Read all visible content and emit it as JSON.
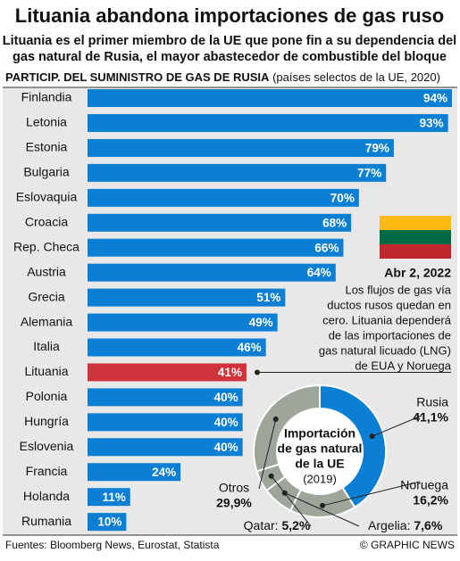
{
  "title": "Lituania abandona importaciones de gas ruso",
  "subtitle": [
    "Lituania es el primer miembro de la UE que pone fin a su dependencia del",
    "gas natural de Rusia, el mayor abastecedor de combustible del bloque"
  ],
  "chart_data": [
    {
      "type": "hbar",
      "title": "PARTICIP. DEL SUMINISTRO DE GAS DE RUSIA",
      "subtitle": "(países selectos de la UE, 2020)",
      "categories": [
        "Finlandia",
        "Letonia",
        "Estonia",
        "Bulgaria",
        "Eslovaquia",
        "Croacia",
        "Rep. Checa",
        "Austria",
        "Grecia",
        "Alemania",
        "Italia",
        "Lituania",
        "Polonia",
        "Hungría",
        "Eslovenia",
        "Francia",
        "Holanda",
        "Rumania"
      ],
      "values": [
        94,
        93,
        79,
        77,
        70,
        68,
        66,
        64,
        51,
        49,
        46,
        41,
        40,
        40,
        40,
        24,
        11,
        10
      ],
      "value_labels": [
        "94%",
        "93%",
        "79%",
        "77%",
        "70%",
        "68%",
        "66%",
        "64%",
        "51%",
        "49%",
        "46%",
        "41%",
        "40%",
        "40%",
        "40%",
        "24%",
        "11%",
        "10%"
      ],
      "color": "#0a7fd4",
      "highlight": {
        "category": "Lituania",
        "color": "#d0313a"
      }
    },
    {
      "type": "donut",
      "title": [
        "Importación",
        "de gas natural",
        "de la UE"
      ],
      "subtitle": "(2019)",
      "categories": [
        "Rusia",
        "Noruega",
        "Argelia:",
        "Qatar:",
        "Otros"
      ],
      "values": [
        41.1,
        16.2,
        7.6,
        5.2,
        29.9
      ],
      "value_labels": [
        "41,1%",
        "16,2%",
        "7,6%",
        "5,2%",
        "29,9%"
      ],
      "colors": [
        "#0a7fd4",
        "#9ea59a",
        "#9ea59a",
        "#9ea59a",
        "#9ea59a"
      ]
    }
  ],
  "annotation": {
    "date": "Abr 2, 2022",
    "lines": [
      "Los flujos de gas vía",
      "ductos rusos quedan en",
      "cero. Lituania dependerá",
      "de las importaciones de",
      "gas natural licuado (LNG)",
      "de EUA y Noruega"
    ]
  },
  "footer": {
    "source": "Fuentes: Bloomberg News, Eurostat, Statista",
    "credit": "© GRAPHIC NEWS"
  }
}
